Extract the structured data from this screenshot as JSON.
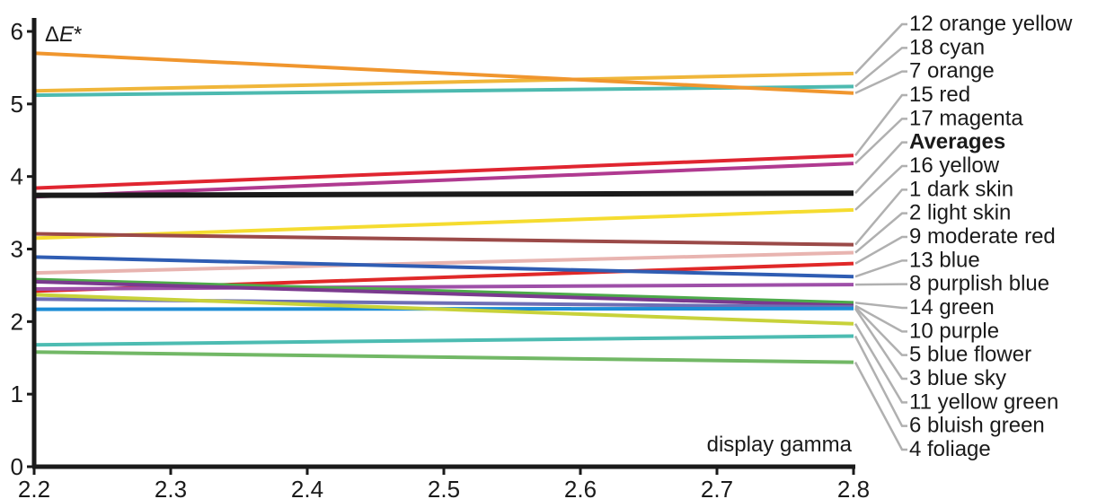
{
  "chart_data": {
    "type": "line",
    "xlabel": "display gamma",
    "ylabel": "ΔE*",
    "ylabel_parts": {
      "symbol": "Δ",
      "letter": "E",
      "suffix": "*"
    },
    "xlim": [
      2.2,
      2.8
    ],
    "ylim": [
      0,
      6
    ],
    "x_ticks": [
      "2.2",
      "2.3",
      "2.4",
      "2.5",
      "2.6",
      "2.7",
      "2.8"
    ],
    "y_ticks": [
      "0",
      "1",
      "2",
      "3",
      "4",
      "5",
      "6"
    ],
    "x": [
      2.2,
      2.8
    ],
    "series": [
      {
        "name": "12 orange yellow",
        "color": "#F0B63A",
        "values": [
          5.18,
          5.42
        ]
      },
      {
        "name": "18 cyan",
        "color": "#4DBAB0",
        "values": [
          5.12,
          5.24
        ]
      },
      {
        "name": "7 orange",
        "color": "#F0962E",
        "values": [
          5.7,
          5.15
        ]
      },
      {
        "name": "15 red",
        "color": "#E02530",
        "values": [
          3.84,
          4.29
        ]
      },
      {
        "name": "17 magenta",
        "color": "#B03A90",
        "values": [
          3.72,
          4.18
        ]
      },
      {
        "name": "Averages",
        "color": "#1a1a1a",
        "bold": true,
        "values": [
          3.74,
          3.77
        ]
      },
      {
        "name": "16 yellow",
        "color": "#F5DC30",
        "values": [
          3.15,
          3.54
        ]
      },
      {
        "name": "1 dark skin",
        "color": "#9B4A48",
        "values": [
          3.21,
          3.06
        ]
      },
      {
        "name": "2 light skin",
        "color": "#E8B4B0",
        "values": [
          2.67,
          2.95
        ]
      },
      {
        "name": "9 moderate red",
        "color": "#E02828",
        "values": [
          2.42,
          2.8
        ]
      },
      {
        "name": "13 blue",
        "color": "#2F5DB3",
        "values": [
          2.89,
          2.62
        ]
      },
      {
        "name": "8 purplish blue",
        "color": "#9E4FA8",
        "values": [
          2.45,
          2.51
        ]
      },
      {
        "name": "14 green",
        "color": "#4DAA4A",
        "values": [
          2.58,
          2.26
        ]
      },
      {
        "name": "10 purple",
        "color": "#7A3A8E",
        "values": [
          2.55,
          2.22
        ]
      },
      {
        "name": "5 blue flower",
        "color": "#6E6FB5",
        "values": [
          2.31,
          2.2
        ]
      },
      {
        "name": "3 blue sky",
        "color": "#1C8DD6",
        "values": [
          2.17,
          2.18
        ]
      },
      {
        "name": "11 yellow green",
        "color": "#C8D23A",
        "values": [
          2.37,
          1.97
        ]
      },
      {
        "name": "6 bluish green",
        "color": "#4DBCB2",
        "values": [
          1.68,
          1.8
        ]
      },
      {
        "name": "4 foliage",
        "color": "#72B866",
        "values": [
          1.58,
          1.44
        ]
      }
    ]
  }
}
